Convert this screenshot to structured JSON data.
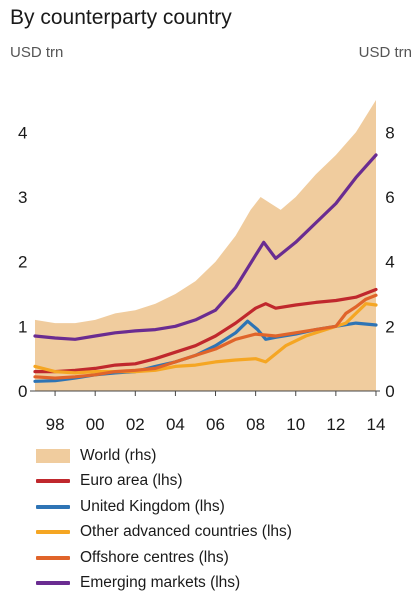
{
  "chart_data": {
    "type": "line",
    "title": "By counterparty country",
    "left_axis_unit": "USD trn",
    "right_axis_unit": "USD trn",
    "x_ticks": [
      "98",
      "00",
      "02",
      "04",
      "06",
      "08",
      "10",
      "12",
      "14"
    ],
    "x_tick_years": [
      1998,
      2000,
      2002,
      2004,
      2006,
      2008,
      2010,
      2012,
      2014
    ],
    "xlim": [
      1996.75,
      2014.5
    ],
    "ylim_left": [
      0,
      4.5
    ],
    "ylim_right": [
      0,
      9
    ],
    "left_ticks": [
      0,
      1,
      2,
      3,
      4
    ],
    "right_ticks": [
      0,
      2,
      4,
      6,
      8
    ],
    "grid": false,
    "legend_position": "bottom",
    "series": [
      {
        "name": "World (rhs)",
        "kind": "area",
        "axis": "right",
        "color": "#f0cc9e",
        "x": [
          1997.0,
          1998.0,
          1999.0,
          2000.0,
          2001.0,
          2002.0,
          2003.0,
          2004.0,
          2005.0,
          2006.0,
          2007.0,
          2007.75,
          2008.25,
          2008.75,
          2009.25,
          2010.0,
          2011.0,
          2012.0,
          2013.0,
          2014.0
        ],
        "values": [
          2.2,
          2.1,
          2.1,
          2.2,
          2.4,
          2.5,
          2.7,
          3.0,
          3.4,
          4.0,
          4.8,
          5.6,
          6.0,
          5.8,
          5.6,
          6.0,
          6.7,
          7.3,
          8.0,
          9.0
        ]
      },
      {
        "name": "Euro area (lhs)",
        "kind": "line",
        "axis": "left",
        "color": "#c0282d",
        "x": [
          1997.0,
          1998.0,
          1999.0,
          2000.0,
          2001.0,
          2002.0,
          2003.0,
          2004.0,
          2005.0,
          2006.0,
          2007.0,
          2008.0,
          2008.5,
          2009.0,
          2010.0,
          2011.0,
          2012.0,
          2013.0,
          2014.0
        ],
        "values": [
          0.3,
          0.3,
          0.32,
          0.35,
          0.4,
          0.42,
          0.5,
          0.6,
          0.7,
          0.85,
          1.05,
          1.28,
          1.35,
          1.28,
          1.33,
          1.37,
          1.4,
          1.45,
          1.57
        ]
      },
      {
        "name": "United Kingdom (lhs)",
        "kind": "line",
        "axis": "left",
        "color": "#2e74b5",
        "x": [
          1997.0,
          1998.0,
          1999.0,
          2000.0,
          2001.0,
          2002.0,
          2003.0,
          2004.0,
          2005.0,
          2006.0,
          2007.0,
          2007.6,
          2008.1,
          2008.5,
          2009.0,
          2010.0,
          2011.0,
          2012.0,
          2013.0,
          2014.0
        ],
        "values": [
          0.15,
          0.16,
          0.2,
          0.25,
          0.28,
          0.3,
          0.38,
          0.45,
          0.55,
          0.7,
          0.9,
          1.08,
          0.95,
          0.8,
          0.83,
          0.88,
          0.95,
          1.0,
          1.05,
          1.02
        ]
      },
      {
        "name": "Other advanced countries (lhs)",
        "kind": "line",
        "axis": "left",
        "color": "#f5a623",
        "x": [
          1997.0,
          1998.0,
          1999.0,
          2000.0,
          2001.0,
          2002.0,
          2003.0,
          2004.0,
          2005.0,
          2006.0,
          2007.0,
          2008.0,
          2008.5,
          2009.5,
          2010.5,
          2011.5,
          2012.5,
          2013.0,
          2013.5,
          2014.0
        ],
        "values": [
          0.38,
          0.3,
          0.28,
          0.3,
          0.3,
          0.3,
          0.32,
          0.38,
          0.4,
          0.45,
          0.48,
          0.5,
          0.45,
          0.7,
          0.85,
          0.95,
          1.05,
          1.2,
          1.35,
          1.33
        ]
      },
      {
        "name": "Offshore centres (lhs)",
        "kind": "line",
        "axis": "left",
        "color": "#e0642a",
        "x": [
          1997.0,
          1998.0,
          1999.0,
          2000.0,
          2001.0,
          2002.0,
          2003.0,
          2004.0,
          2005.0,
          2006.0,
          2007.0,
          2008.0,
          2009.0,
          2010.0,
          2011.0,
          2012.0,
          2012.5,
          2013.0,
          2013.5,
          2014.0
        ],
        "values": [
          0.22,
          0.2,
          0.22,
          0.25,
          0.3,
          0.32,
          0.35,
          0.45,
          0.55,
          0.65,
          0.8,
          0.88,
          0.85,
          0.9,
          0.95,
          1.0,
          1.2,
          1.3,
          1.42,
          1.48
        ]
      },
      {
        "name": "Emerging markets (lhs)",
        "kind": "line",
        "axis": "left",
        "color": "#6a2c91",
        "x": [
          1997.0,
          1998.0,
          1999.0,
          2000.0,
          2001.0,
          2002.0,
          2003.0,
          2004.0,
          2005.0,
          2006.0,
          2007.0,
          2008.0,
          2008.4,
          2009.0,
          2010.0,
          2011.0,
          2012.0,
          2013.0,
          2014.0
        ],
        "values": [
          0.85,
          0.82,
          0.8,
          0.85,
          0.9,
          0.93,
          0.95,
          1.0,
          1.1,
          1.25,
          1.6,
          2.1,
          2.3,
          2.05,
          2.3,
          2.6,
          2.9,
          3.3,
          3.65
        ]
      }
    ]
  }
}
